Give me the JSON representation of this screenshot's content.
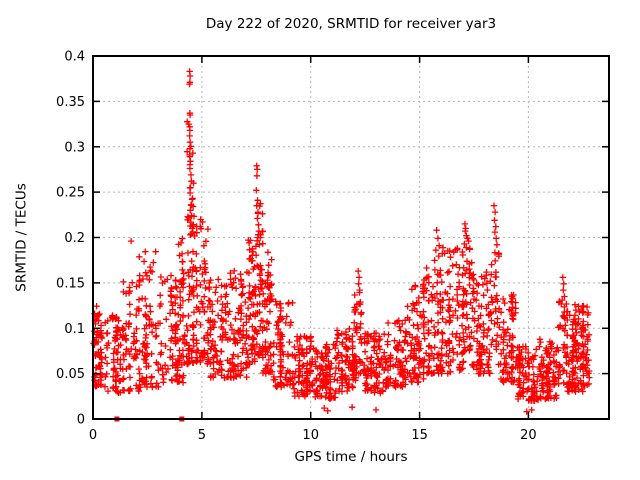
{
  "chart_data": {
    "type": "scatter",
    "title": "Day 222 of 2020, SRMTID for receiver yar3",
    "xlabel": "GPS time / hours",
    "ylabel": "SRMTID / TECUs",
    "xlim": [
      0,
      23.7
    ],
    "ylim": [
      0,
      0.4
    ],
    "xtick_values": [
      0,
      5,
      10,
      15,
      20
    ],
    "xtick_labels": [
      "0",
      "5",
      "10",
      "15",
      "20"
    ],
    "ytick_values": [
      0,
      0.05,
      0.1,
      0.15,
      0.2,
      0.25,
      0.3,
      0.35,
      0.4
    ],
    "ytick_labels": [
      "0",
      "0.05",
      "0.1",
      "0.15",
      "0.2",
      "0.25",
      "0.3",
      "0.35",
      "0.4"
    ],
    "grid": true,
    "legend": "none",
    "marker": "plus",
    "marker_color": "#ff0000",
    "grid_color": "#b4b4b4",
    "axis_color": "#000000",
    "seed": 42,
    "density_segments_comment": "each segment: [t_start_hr, t_end_hr, n_points, v_min, v_max, low_bias_exponent] describing the dense scatter band read from the plot",
    "density_segments": [
      [
        0.0,
        0.6,
        70,
        0.035,
        0.125,
        1.2
      ],
      [
        0.6,
        1.3,
        60,
        0.028,
        0.115,
        1.4
      ],
      [
        1.3,
        2.1,
        65,
        0.03,
        0.155,
        1.5
      ],
      [
        2.1,
        3.0,
        85,
        0.035,
        0.185,
        1.5
      ],
      [
        3.0,
        3.9,
        75,
        0.04,
        0.16,
        1.4
      ],
      [
        3.9,
        4.2,
        40,
        0.04,
        0.2,
        1.2
      ],
      [
        4.2,
        4.65,
        75,
        0.06,
        0.33,
        1.7
      ],
      [
        4.65,
        5.3,
        70,
        0.06,
        0.22,
        1.5
      ],
      [
        5.3,
        6.2,
        85,
        0.045,
        0.155,
        1.4
      ],
      [
        6.2,
        7.1,
        90,
        0.045,
        0.165,
        1.4
      ],
      [
        7.1,
        7.45,
        50,
        0.06,
        0.2,
        1.3
      ],
      [
        7.45,
        7.8,
        55,
        0.07,
        0.24,
        1.5
      ],
      [
        7.8,
        8.3,
        60,
        0.05,
        0.185,
        1.5
      ],
      [
        8.3,
        9.2,
        80,
        0.035,
        0.13,
        1.5
      ],
      [
        9.2,
        10.2,
        90,
        0.025,
        0.095,
        1.3
      ],
      [
        10.2,
        11.2,
        95,
        0.022,
        0.085,
        1.3
      ],
      [
        11.2,
        12.0,
        85,
        0.03,
        0.1,
        1.4
      ],
      [
        12.0,
        12.4,
        40,
        0.04,
        0.14,
        1.2
      ],
      [
        12.4,
        13.4,
        95,
        0.028,
        0.095,
        1.3
      ],
      [
        13.4,
        14.4,
        90,
        0.035,
        0.11,
        1.4
      ],
      [
        14.4,
        15.2,
        80,
        0.04,
        0.15,
        1.4
      ],
      [
        15.2,
        16.0,
        85,
        0.05,
        0.18,
        1.4
      ],
      [
        16.0,
        17.0,
        100,
        0.05,
        0.19,
        1.4
      ],
      [
        17.0,
        17.4,
        45,
        0.07,
        0.19,
        1.2
      ],
      [
        17.4,
        18.25,
        85,
        0.05,
        0.165,
        1.4
      ],
      [
        18.25,
        18.65,
        35,
        0.06,
        0.185,
        1.2
      ],
      [
        18.65,
        19.5,
        80,
        0.04,
        0.14,
        1.5
      ],
      [
        19.5,
        20.5,
        95,
        0.02,
        0.08,
        1.3
      ],
      [
        20.5,
        21.3,
        90,
        0.022,
        0.088,
        1.3
      ],
      [
        21.3,
        21.8,
        45,
        0.035,
        0.13,
        1.3
      ],
      [
        21.8,
        22.3,
        70,
        0.03,
        0.115,
        1.3
      ],
      [
        22.3,
        22.8,
        65,
        0.03,
        0.125,
        1.3
      ]
    ],
    "notable_points_comment": "explicit [hour, TECU] points read from the plot: spike tops and isolated outliers",
    "notable_points": [
      [
        4.44,
        0.383
      ],
      [
        4.46,
        0.378
      ],
      [
        4.45,
        0.371
      ],
      [
        4.43,
        0.369
      ],
      [
        4.45,
        0.337
      ],
      [
        4.46,
        0.335
      ],
      [
        4.44,
        0.322
      ],
      [
        4.45,
        0.318
      ],
      [
        4.44,
        0.312
      ],
      [
        4.46,
        0.305
      ],
      [
        4.45,
        0.298
      ],
      [
        4.44,
        0.291
      ],
      [
        4.47,
        0.284
      ],
      [
        4.45,
        0.276
      ],
      [
        4.5,
        0.269
      ],
      [
        4.52,
        0.262
      ],
      [
        4.48,
        0.255
      ],
      [
        4.46,
        0.249
      ],
      [
        4.55,
        0.242
      ],
      [
        4.5,
        0.236
      ],
      [
        4.47,
        0.23
      ],
      [
        4.53,
        0.224
      ],
      [
        4.49,
        0.217
      ],
      [
        4.56,
        0.21
      ],
      [
        4.51,
        0.204
      ],
      [
        7.52,
        0.279
      ],
      [
        7.54,
        0.275
      ],
      [
        7.53,
        0.268
      ],
      [
        7.5,
        0.252
      ],
      [
        7.56,
        0.241
      ],
      [
        7.52,
        0.235
      ],
      [
        7.58,
        0.228
      ],
      [
        7.55,
        0.221
      ],
      [
        7.6,
        0.214
      ],
      [
        7.62,
        0.207
      ],
      [
        7.57,
        0.2
      ],
      [
        17.08,
        0.215
      ],
      [
        17.12,
        0.21
      ],
      [
        17.1,
        0.207
      ],
      [
        17.15,
        0.202
      ],
      [
        17.2,
        0.199
      ],
      [
        17.25,
        0.196
      ],
      [
        17.06,
        0.193
      ],
      [
        18.42,
        0.235
      ],
      [
        18.47,
        0.228
      ],
      [
        18.44,
        0.219
      ],
      [
        18.5,
        0.212
      ],
      [
        18.46,
        0.206
      ],
      [
        18.52,
        0.199
      ],
      [
        18.55,
        0.192
      ],
      [
        15.78,
        0.208
      ],
      [
        15.84,
        0.199
      ],
      [
        15.9,
        0.191
      ],
      [
        15.75,
        0.186
      ],
      [
        21.58,
        0.156
      ],
      [
        21.62,
        0.149
      ],
      [
        21.6,
        0.142
      ],
      [
        21.65,
        0.135
      ],
      [
        21.55,
        0.131
      ],
      [
        12.18,
        0.163
      ],
      [
        12.22,
        0.156
      ],
      [
        12.2,
        0.149
      ],
      [
        12.25,
        0.142
      ],
      [
        1.75,
        0.196
      ],
      [
        22.14,
        0.126
      ],
      [
        22.18,
        0.12
      ],
      [
        0.88,
        0.112
      ],
      [
        0.9,
        0.113
      ],
      [
        0.92,
        0.111
      ],
      [
        0.9,
        0.11
      ],
      [
        0.89,
        0.114
      ],
      [
        22.48,
        0.101
      ],
      [
        22.52,
        0.099
      ],
      [
        22.5,
        0.1
      ],
      [
        22.5,
        0.103
      ],
      [
        22.54,
        0.098
      ],
      [
        10.62,
        0.012
      ],
      [
        10.78,
        0.009
      ],
      [
        19.92,
        0.008
      ],
      [
        20.15,
        0.01
      ],
      [
        11.9,
        0.013
      ],
      [
        13.0,
        0.01
      ]
    ],
    "zero_value_clusters_comment": "hours where clumps of zero-valued points sit on the x axis (appear as filled squares)",
    "zero_value_clusters": [
      1.1,
      4.08
    ]
  }
}
